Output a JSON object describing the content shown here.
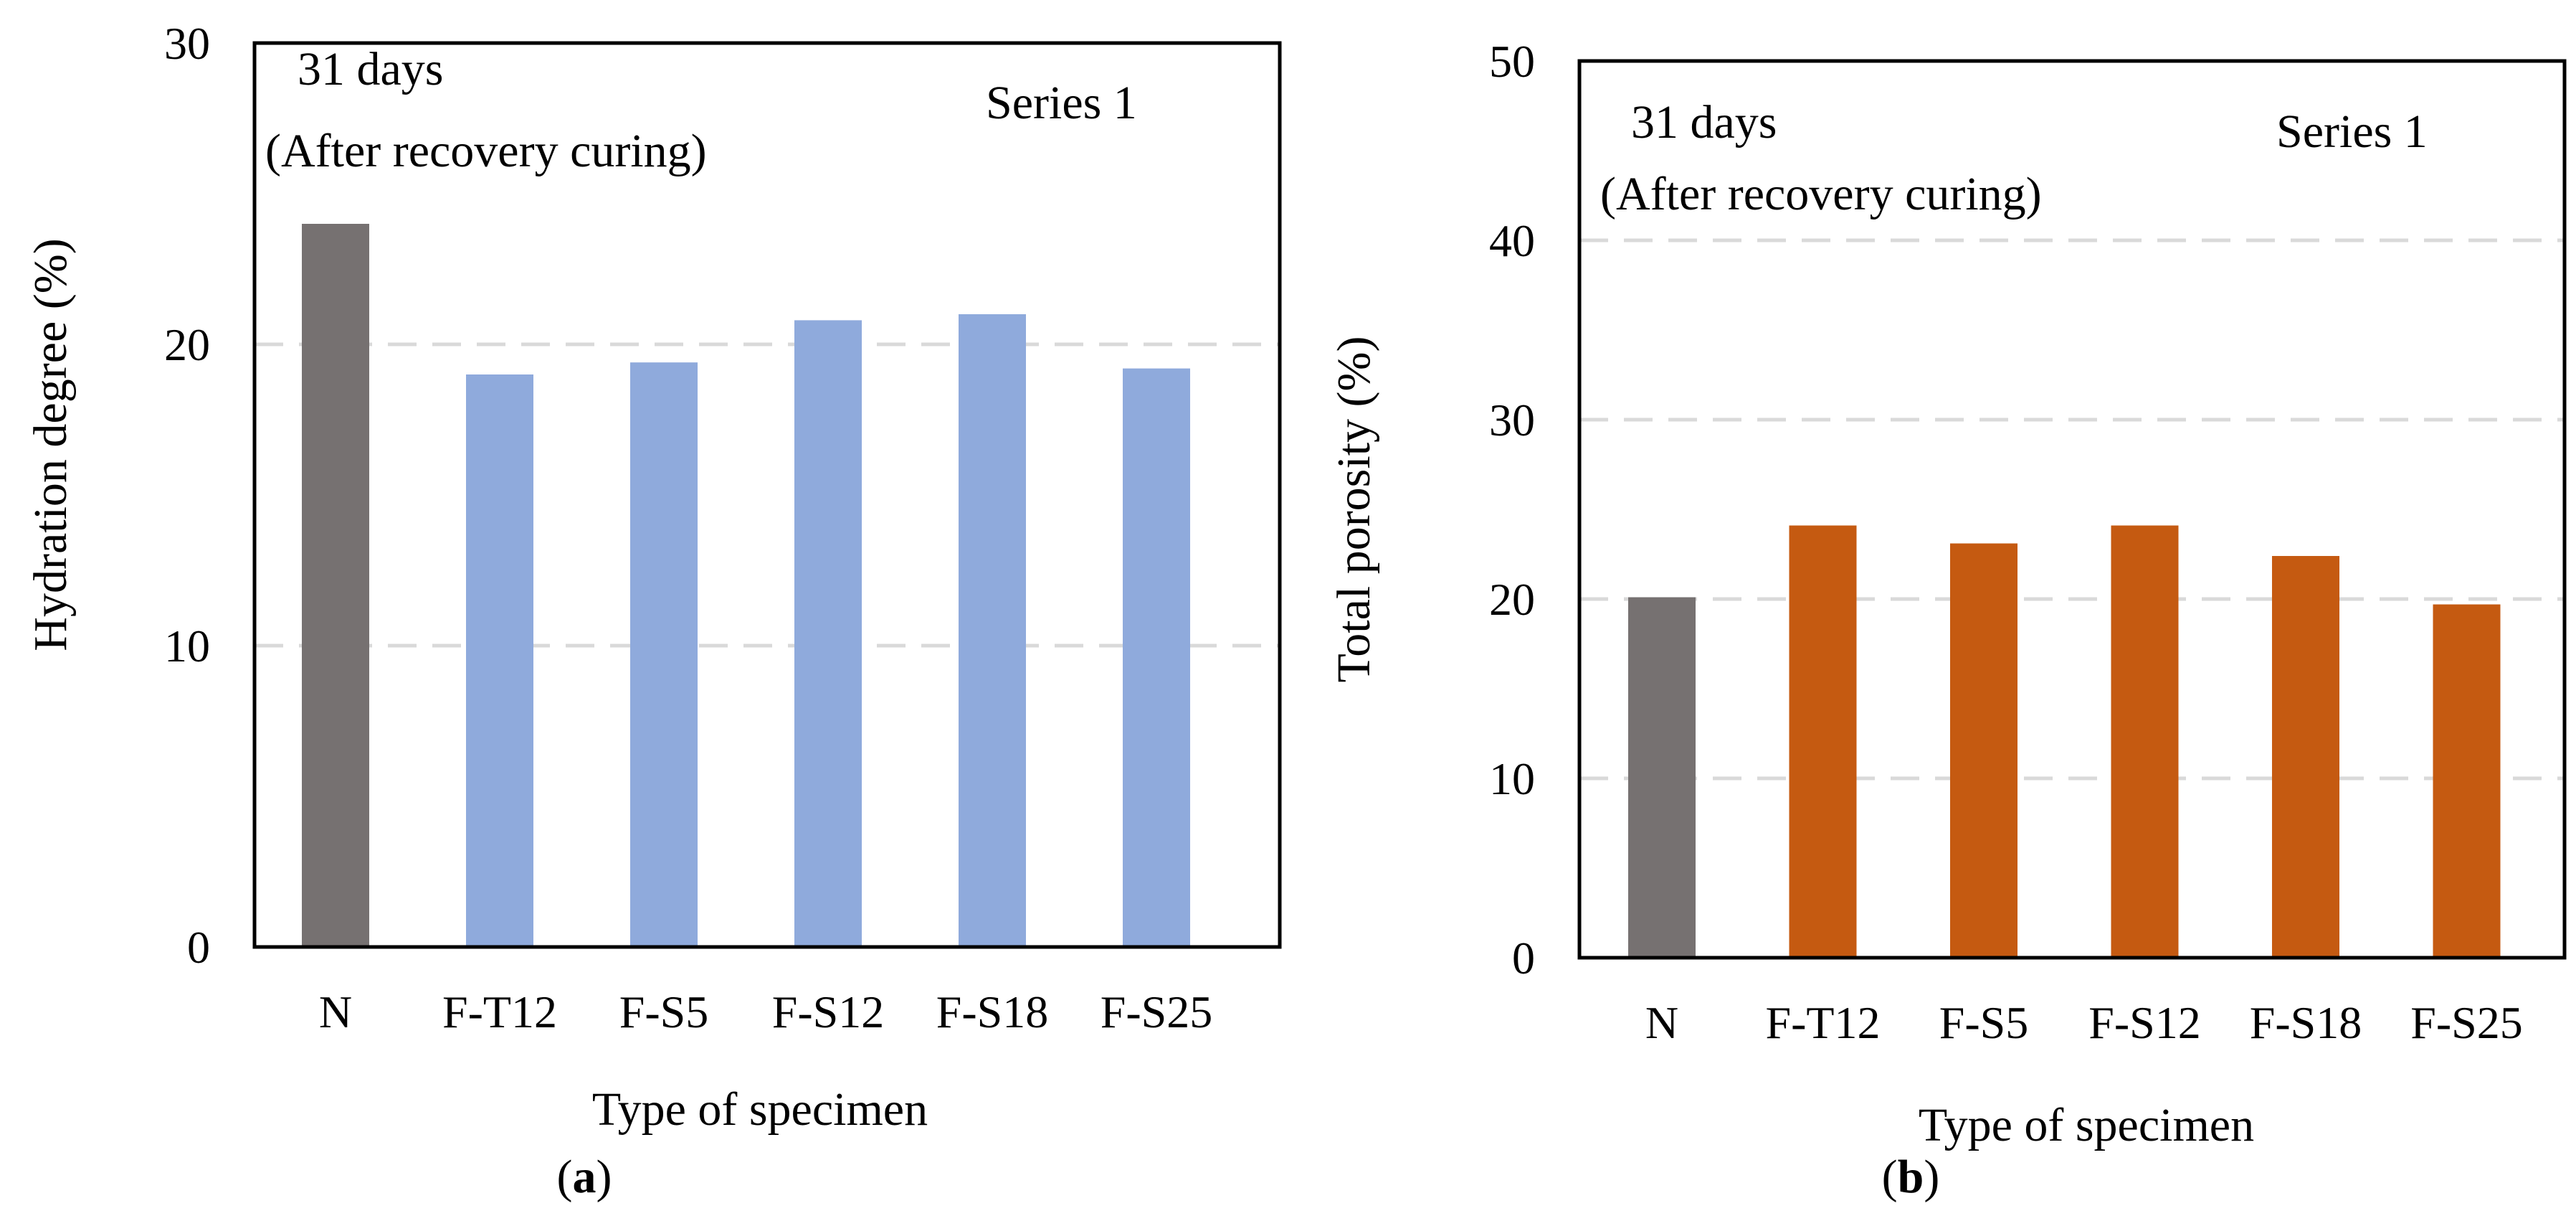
{
  "chart_data": [
    {
      "type": "bar",
      "panel_label": "(a)",
      "panel_letter": "a",
      "categories": [
        "N",
        "F-T12",
        "F-S5",
        "F-S12",
        "F-S18",
        "F-S25"
      ],
      "values": [
        24.0,
        19.0,
        19.4,
        20.8,
        21.0,
        19.2
      ],
      "bar_colors": [
        "#767171",
        "#8faadc",
        "#8faadc",
        "#8faadc",
        "#8faadc",
        "#8faadc"
      ],
      "xlabel": "Type of specimen",
      "ylabel": "Hydration degree  (%)",
      "ylim": [
        0,
        30
      ],
      "yticks": [
        0,
        10,
        20,
        30
      ],
      "gridlines": [
        10,
        20
      ],
      "annotation_line1": "31 days",
      "annotation_line2": "(After recovery curing)",
      "series_label": "Series 1"
    },
    {
      "type": "bar",
      "panel_label": "(b)",
      "panel_letter": "b",
      "categories": [
        "N",
        "F-T12",
        "F-S5",
        "F-S12",
        "F-S18",
        "F-S25"
      ],
      "values": [
        20.1,
        24.1,
        23.1,
        24.1,
        22.4,
        19.7
      ],
      "bar_colors": [
        "#767171",
        "#c55a11",
        "#c55a11",
        "#c55a11",
        "#c55a11",
        "#c55a11"
      ],
      "xlabel": "Type of specimen",
      "ylabel": "Total porosity (%)",
      "ylim": [
        0,
        50
      ],
      "yticks": [
        0,
        10,
        20,
        30,
        40,
        50
      ],
      "gridlines": [
        10,
        20,
        30,
        40
      ],
      "annotation_line1": "31 days",
      "annotation_line2": "(After recovery curing)",
      "series_label": "Series 1"
    }
  ]
}
